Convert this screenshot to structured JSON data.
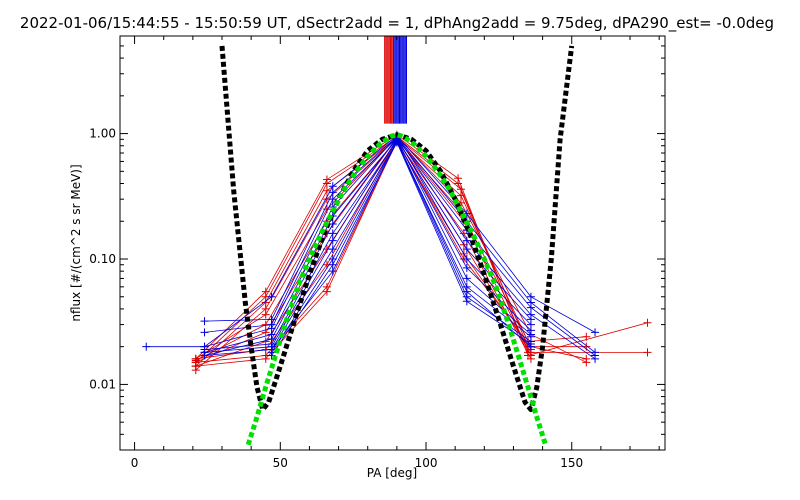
{
  "chart_data": {
    "type": "line",
    "title": "2022-01-06/15:44:55 - 15:50:59 UT, dSectr2add = 1, dPhAng2add = 9.75deg, dPA290_est=  -0.0deg",
    "xlabel": "PA [deg]",
    "ylabel": "nflux [#/(cm^2 s sr MeV)]",
    "xlim": [
      -5,
      182
    ],
    "ylim": [
      0.003,
      6
    ],
    "yscale": "log",
    "xticks": [
      0,
      50,
      100,
      150
    ],
    "xtick_labels": [
      "0",
      "50",
      "100",
      "150"
    ],
    "yticks": [
      0.01,
      0.1,
      1.0
    ],
    "ytick_labels": [
      "0.01",
      "0.10",
      "1.00"
    ],
    "grid": false,
    "colors": {
      "fit_black": "#000000",
      "fit_green": "#00e000",
      "series_red": "#dd0000",
      "series_blue": "#0000dd"
    },
    "fit_curves": [
      {
        "color": "black",
        "style": "thick-dashed",
        "x": [
          30,
          34,
          38,
          40,
          42,
          44,
          46,
          50,
          55,
          60,
          65,
          70,
          75,
          80,
          85,
          90,
          95,
          100,
          105,
          110,
          115,
          120,
          125,
          130,
          134,
          136,
          138,
          140,
          143,
          146,
          150
        ],
        "y": [
          5,
          0.35,
          0.045,
          0.02,
          0.0095,
          0.0063,
          0.0072,
          0.014,
          0.033,
          0.075,
          0.16,
          0.3,
          0.5,
          0.73,
          0.9,
          0.98,
          0.9,
          0.73,
          0.5,
          0.3,
          0.16,
          0.075,
          0.033,
          0.014,
          0.0072,
          0.0063,
          0.0095,
          0.02,
          0.1,
          0.9,
          5
        ]
      },
      {
        "color": "green",
        "style": "thick-dashed",
        "x": [
          39,
          42,
          45,
          48,
          52,
          56,
          60,
          64,
          68,
          72,
          76,
          80,
          84,
          88,
          90,
          92,
          96,
          100,
          104,
          108,
          112,
          116,
          120,
          124,
          128,
          132,
          135,
          138,
          141
        ],
        "y": [
          0.0033,
          0.0055,
          0.0095,
          0.016,
          0.032,
          0.06,
          0.1,
          0.16,
          0.24,
          0.36,
          0.5,
          0.66,
          0.82,
          0.95,
          0.98,
          0.95,
          0.82,
          0.66,
          0.5,
          0.36,
          0.24,
          0.16,
          0.1,
          0.06,
          0.032,
          0.016,
          0.0095,
          0.0055,
          0.0033
        ]
      }
    ],
    "series": [
      {
        "color": "red",
        "x": [
          21,
          45,
          66,
          90,
          111,
          135,
          176
        ],
        "y": [
          0.016,
          0.055,
          0.43,
          0.98,
          0.44,
          0.017,
          0.031
        ]
      },
      {
        "color": "red",
        "x": [
          21,
          45,
          66,
          90,
          111,
          135,
          176
        ],
        "y": [
          0.015,
          0.05,
          0.4,
          0.95,
          0.4,
          0.018,
          0.018
        ]
      },
      {
        "color": "red",
        "x": [
          21,
          45,
          66,
          90,
          112,
          135,
          155
        ],
        "y": [
          0.014,
          0.045,
          0.35,
          0.93,
          0.36,
          0.02,
          0.02
        ]
      },
      {
        "color": "red",
        "x": [
          21,
          45,
          66,
          90,
          112,
          135,
          155
        ],
        "y": [
          0.013,
          0.04,
          0.3,
          0.92,
          0.32,
          0.022,
          0.024
        ]
      },
      {
        "color": "red",
        "x": [
          21,
          45,
          66,
          90,
          112,
          136,
          155
        ],
        "y": [
          0.016,
          0.036,
          0.25,
          0.95,
          0.28,
          0.025,
          0.015
        ]
      },
      {
        "color": "red",
        "x": [
          21,
          45,
          66,
          90,
          112,
          136,
          155
        ],
        "y": [
          0.0155,
          0.03,
          0.2,
          0.9,
          0.24,
          0.02,
          0.016
        ]
      },
      {
        "color": "red",
        "x": [
          21,
          45,
          66,
          90,
          113,
          136
        ],
        "y": [
          0.015,
          0.026,
          0.16,
          0.92,
          0.2,
          0.017
        ]
      },
      {
        "color": "red",
        "x": [
          21,
          45,
          66,
          90,
          113,
          136
        ],
        "y": [
          0.014,
          0.022,
          0.12,
          0.88,
          0.16,
          0.016
        ]
      },
      {
        "color": "red",
        "x": [
          21,
          45,
          66,
          90,
          113,
          136
        ],
        "y": [
          0.016,
          0.019,
          0.09,
          0.9,
          0.13,
          0.018
        ]
      },
      {
        "color": "red",
        "x": [
          21,
          45,
          66,
          90,
          113,
          136
        ],
        "y": [
          0.015,
          0.017,
          0.06,
          0.86,
          0.11,
          0.019
        ]
      },
      {
        "color": "red",
        "x": [
          21,
          45,
          66,
          90,
          113,
          136
        ],
        "y": [
          0.014,
          0.016,
          0.055,
          0.88,
          0.1,
          0.02
        ]
      },
      {
        "color": "blue",
        "x": [
          4,
          24,
          47,
          68,
          90,
          114,
          136,
          158
        ],
        "y": [
          0.02,
          0.02,
          0.05,
          0.38,
          0.96,
          0.23,
          0.05,
          0.026
        ]
      },
      {
        "color": "blue",
        "x": [
          24,
          47,
          68,
          90,
          114,
          136,
          158
        ],
        "y": [
          0.032,
          0.033,
          0.34,
          0.94,
          0.2,
          0.045,
          0.018
        ]
      },
      {
        "color": "blue",
        "x": [
          24,
          47,
          68,
          90,
          114,
          136,
          158
        ],
        "y": [
          0.026,
          0.03,
          0.3,
          0.92,
          0.17,
          0.041,
          0.017
        ]
      },
      {
        "color": "blue",
        "x": [
          24,
          47,
          68,
          90,
          114,
          136,
          158
        ],
        "y": [
          0.02,
          0.028,
          0.26,
          0.95,
          0.14,
          0.036,
          0.016
        ]
      },
      {
        "color": "blue",
        "x": [
          24,
          47,
          68,
          90,
          114,
          136
        ],
        "y": [
          0.018,
          0.025,
          0.22,
          0.9,
          0.12,
          0.033
        ]
      },
      {
        "color": "blue",
        "x": [
          24,
          47,
          68,
          90,
          114,
          136
        ],
        "y": [
          0.017,
          0.023,
          0.19,
          0.93,
          0.1,
          0.03
        ]
      },
      {
        "color": "blue",
        "x": [
          24,
          47,
          68,
          90,
          114,
          136
        ],
        "y": [
          0.019,
          0.021,
          0.16,
          0.88,
          0.085,
          0.027
        ]
      },
      {
        "color": "blue",
        "x": [
          24,
          47,
          68,
          90,
          114,
          136
        ],
        "y": [
          0.018,
          0.02,
          0.14,
          0.9,
          0.07,
          0.025
        ]
      },
      {
        "color": "blue",
        "x": [
          24,
          47,
          68,
          90,
          114,
          136
        ],
        "y": [
          0.017,
          0.019,
          0.12,
          0.86,
          0.06,
          0.024
        ]
      },
      {
        "color": "blue",
        "x": [
          47,
          68,
          90,
          114,
          136
        ],
        "y": [
          0.018,
          0.1,
          0.87,
          0.05,
          0.022
        ]
      },
      {
        "color": "blue",
        "x": [
          47,
          68,
          90,
          114,
          136
        ],
        "y": [
          0.017,
          0.09,
          0.85,
          0.046,
          0.021
        ]
      },
      {
        "color": "blue",
        "x": [
          47,
          68,
          90,
          114,
          136
        ],
        "y": [
          0.019,
          0.08,
          0.88,
          0.055,
          0.02
        ]
      }
    ],
    "top_markers": {
      "red_x": [
        85.8,
        86.2,
        86.6,
        87.0,
        87.4,
        87.8,
        88.2,
        88.6
      ],
      "blue_x": [
        88.9,
        89.3,
        89.7,
        90.1,
        90.5,
        90.9,
        91.3,
        91.7,
        92.1,
        92.5,
        92.9,
        93.3
      ],
      "y_from": 1.2
    }
  }
}
